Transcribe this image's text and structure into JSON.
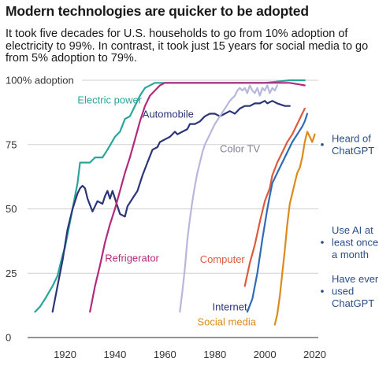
{
  "title": "Modern technologies are quicker to be adopted",
  "subtitle": "It took five decades for U.S. households to go from 10% adoption of electricity to 99%. In contrast, it took just 15 years for social media to go from 5% adoption to 79%.",
  "chart_data": {
    "type": "line",
    "xlim": [
      1905,
      2023
    ],
    "ylim": [
      0,
      100
    ],
    "x_ticks": [
      1920,
      1940,
      1960,
      1980,
      2000,
      2020
    ],
    "y_ticks": [
      {
        "value": 0,
        "label": "0"
      },
      {
        "value": 25,
        "label": "25"
      },
      {
        "value": 50,
        "label": "50"
      },
      {
        "value": 75,
        "label": "75"
      },
      {
        "value": 100,
        "label": "100% adoption"
      }
    ],
    "grid": true,
    "series": [
      {
        "name": "Electric power",
        "color": "#2aa59a",
        "points": [
          [
            1908,
            10
          ],
          [
            1910,
            12
          ],
          [
            1912,
            15
          ],
          [
            1915,
            20
          ],
          [
            1917,
            24
          ],
          [
            1919,
            32
          ],
          [
            1920,
            35
          ],
          [
            1922,
            45
          ],
          [
            1924,
            55
          ],
          [
            1925,
            60
          ],
          [
            1926,
            68
          ],
          [
            1929,
            68
          ],
          [
            1930,
            68
          ],
          [
            1932,
            70
          ],
          [
            1935,
            70
          ],
          [
            1937,
            73
          ],
          [
            1940,
            78
          ],
          [
            1942,
            80
          ],
          [
            1944,
            85
          ],
          [
            1946,
            86
          ],
          [
            1948,
            90
          ],
          [
            1950,
            94
          ],
          [
            1952,
            97
          ],
          [
            1956,
            99
          ],
          [
            1960,
            99
          ],
          [
            1980,
            99
          ],
          [
            2000,
            99
          ],
          [
            2010,
            100
          ],
          [
            2016,
            100
          ]
        ]
      },
      {
        "name": "Automobile",
        "color": "#2b3578",
        "points": [
          [
            1915,
            10
          ],
          [
            1917,
            20
          ],
          [
            1919,
            30
          ],
          [
            1921,
            42
          ],
          [
            1923,
            50
          ],
          [
            1925,
            56
          ],
          [
            1926,
            58
          ],
          [
            1927,
            59
          ],
          [
            1928,
            58
          ],
          [
            1929,
            54
          ],
          [
            1931,
            49
          ],
          [
            1933,
            53
          ],
          [
            1935,
            52
          ],
          [
            1936,
            55
          ],
          [
            1937,
            57
          ],
          [
            1938,
            54
          ],
          [
            1939,
            57
          ],
          [
            1941,
            51
          ],
          [
            1942,
            48
          ],
          [
            1944,
            47
          ],
          [
            1945,
            51
          ],
          [
            1947,
            54
          ],
          [
            1949,
            57
          ],
          [
            1951,
            63
          ],
          [
            1953,
            68
          ],
          [
            1955,
            73
          ],
          [
            1957,
            74
          ],
          [
            1958,
            76
          ],
          [
            1960,
            77
          ],
          [
            1962,
            78
          ],
          [
            1964,
            80
          ],
          [
            1965,
            79
          ],
          [
            1967,
            80
          ],
          [
            1969,
            81
          ],
          [
            1970,
            83
          ],
          [
            1972,
            83
          ],
          [
            1974,
            84
          ],
          [
            1976,
            86
          ],
          [
            1978,
            87
          ],
          [
            1980,
            87
          ],
          [
            1982,
            86
          ],
          [
            1984,
            87
          ],
          [
            1986,
            88
          ],
          [
            1988,
            87
          ],
          [
            1990,
            89
          ],
          [
            1992,
            90
          ],
          [
            1994,
            90
          ],
          [
            1996,
            91
          ],
          [
            1998,
            91
          ],
          [
            2000,
            92
          ],
          [
            2001,
            91
          ],
          [
            2003,
            92
          ],
          [
            2005,
            91
          ],
          [
            2008,
            90
          ],
          [
            2010,
            90
          ]
        ]
      },
      {
        "name": "Refrigerator",
        "color": "#b32a7d",
        "points": [
          [
            1930,
            10
          ],
          [
            1932,
            20
          ],
          [
            1934,
            28
          ],
          [
            1936,
            37
          ],
          [
            1938,
            44
          ],
          [
            1940,
            50
          ],
          [
            1942,
            57
          ],
          [
            1944,
            64
          ],
          [
            1946,
            70
          ],
          [
            1948,
            77
          ],
          [
            1950,
            84
          ],
          [
            1952,
            90
          ],
          [
            1954,
            94
          ],
          [
            1956,
            96
          ],
          [
            1958,
            98
          ],
          [
            1960,
            99
          ],
          [
            1965,
            99
          ],
          [
            1970,
            99
          ],
          [
            1980,
            99
          ],
          [
            2000,
            99
          ],
          [
            2010,
            99
          ],
          [
            2016,
            98
          ]
        ]
      },
      {
        "name": "Color TV",
        "color": "#b7b7de",
        "points": [
          [
            1966,
            10
          ],
          [
            1967,
            18
          ],
          [
            1968,
            27
          ],
          [
            1969,
            38
          ],
          [
            1970,
            46
          ],
          [
            1971,
            53
          ],
          [
            1972,
            59
          ],
          [
            1973,
            64
          ],
          [
            1974,
            68
          ],
          [
            1975,
            72
          ],
          [
            1976,
            75
          ],
          [
            1978,
            79
          ],
          [
            1980,
            83
          ],
          [
            1982,
            86
          ],
          [
            1984,
            89
          ],
          [
            1986,
            92
          ],
          [
            1988,
            94
          ],
          [
            1989,
            96
          ],
          [
            1990,
            97
          ],
          [
            1991,
            96
          ],
          [
            1992,
            97
          ],
          [
            1993,
            95
          ],
          [
            1994,
            98
          ],
          [
            1995,
            96
          ],
          [
            1996,
            95
          ],
          [
            1997,
            97
          ],
          [
            1998,
            94
          ],
          [
            1999,
            97
          ],
          [
            2000,
            96
          ],
          [
            2001,
            98
          ],
          [
            2002,
            95
          ],
          [
            2003,
            97
          ],
          [
            2004,
            96
          ],
          [
            2005,
            98
          ]
        ]
      },
      {
        "name": "Computer",
        "color": "#dd5b3c",
        "points": [
          [
            1992,
            20
          ],
          [
            1994,
            29
          ],
          [
            1996,
            36
          ],
          [
            1998,
            45
          ],
          [
            2000,
            53
          ],
          [
            2002,
            58
          ],
          [
            2003,
            63
          ],
          [
            2005,
            68
          ],
          [
            2007,
            72
          ],
          [
            2009,
            76
          ],
          [
            2011,
            79
          ],
          [
            2013,
            83
          ],
          [
            2015,
            87
          ],
          [
            2016,
            89
          ]
        ]
      },
      {
        "name": "Internet",
        "color": "#2c6db5",
        "points": [
          [
            1993,
            10
          ],
          [
            1995,
            15
          ],
          [
            1997,
            25
          ],
          [
            1999,
            38
          ],
          [
            2000,
            44
          ],
          [
            2001,
            50
          ],
          [
            2002,
            55
          ],
          [
            2003,
            60
          ],
          [
            2004,
            62
          ],
          [
            2005,
            64
          ],
          [
            2007,
            68
          ],
          [
            2009,
            72
          ],
          [
            2011,
            76
          ],
          [
            2013,
            79
          ],
          [
            2015,
            82
          ],
          [
            2016,
            84
          ],
          [
            2017,
            87
          ]
        ]
      },
      {
        "name": "Social media",
        "color": "#dc8a1b",
        "points": [
          [
            2004,
            5
          ],
          [
            2005,
            9
          ],
          [
            2006,
            16
          ],
          [
            2007,
            25
          ],
          [
            2008,
            34
          ],
          [
            2009,
            44
          ],
          [
            2010,
            52
          ],
          [
            2011,
            56
          ],
          [
            2012,
            60
          ],
          [
            2013,
            64
          ],
          [
            2014,
            66
          ],
          [
            2015,
            70
          ],
          [
            2016,
            76
          ],
          [
            2017,
            80
          ],
          [
            2018,
            78
          ],
          [
            2019,
            76
          ],
          [
            2020,
            79
          ]
        ]
      }
    ],
    "series_labels": [
      {
        "series": "Electric power",
        "text": "Electric power",
        "at": [
          1925,
          91
        ],
        "color": "#2aa59a"
      },
      {
        "series": "Automobile",
        "text": "Automobile",
        "at": [
          1951,
          85.5
        ],
        "color": "#2b3578"
      },
      {
        "series": "Refrigerator",
        "text": "Refrigerator",
        "at": [
          1936,
          29.5
        ],
        "color": "#b32a7d"
      },
      {
        "series": "Color TV",
        "text": "Color TV",
        "at": [
          1982,
          72
        ],
        "color": "#7f7f9d"
      },
      {
        "series": "Computer",
        "text": "Computer",
        "at": [
          1974,
          29
        ],
        "color": "#dd5b3c"
      },
      {
        "series": "Internet",
        "text": "Internet",
        "at": [
          1979,
          10.5
        ],
        "color": "#2b3578"
      },
      {
        "series": "Social media",
        "text": "Social media",
        "at": [
          1973,
          4.8
        ],
        "color": "#dc8a1b"
      }
    ],
    "annotations": [
      {
        "lines": [
          "Heard of",
          "ChatGPT"
        ],
        "value": 75,
        "color": "#2a4f87"
      },
      {
        "lines": [
          "Use AI at",
          "least once",
          "a month"
        ],
        "value": 37,
        "color": "#2a4f87"
      },
      {
        "lines": [
          "Have ever",
          "used",
          "ChatGPT"
        ],
        "value": 18,
        "color": "#2a4f87"
      }
    ]
  }
}
